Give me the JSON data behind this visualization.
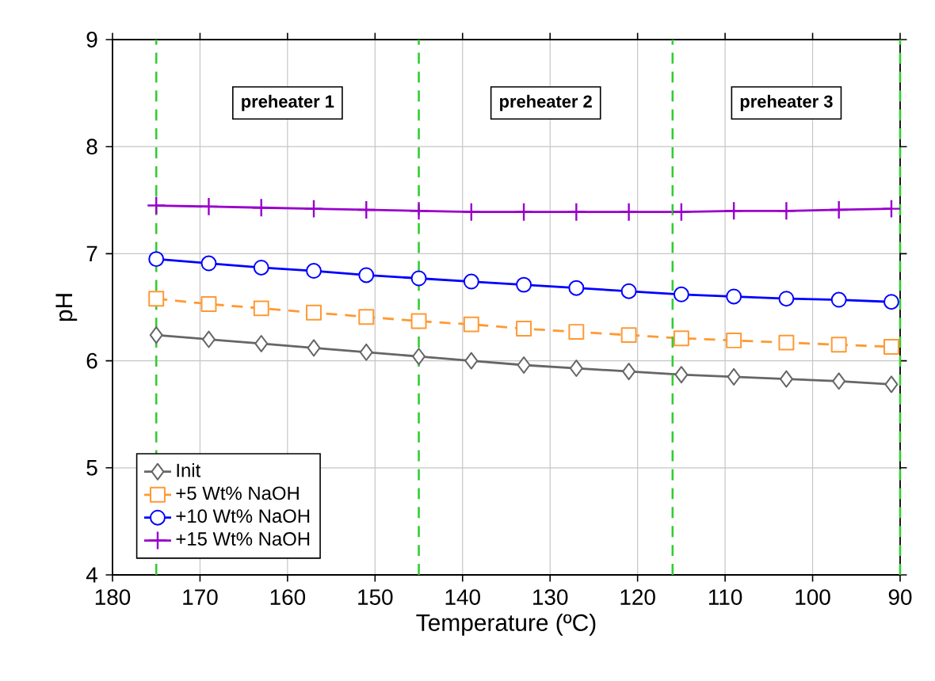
{
  "chart_data": {
    "type": "line",
    "xlabel": "Temperature (ºC)",
    "ylabel": "pH",
    "x": [
      175,
      169,
      163,
      157,
      151,
      145,
      139,
      133,
      127,
      121,
      115,
      109,
      103,
      97,
      91
    ],
    "xlim": [
      180,
      90
    ],
    "xticks": [
      180,
      170,
      160,
      150,
      140,
      130,
      120,
      110,
      100,
      90
    ],
    "ylim": [
      4,
      9
    ],
    "yticks": [
      4,
      5,
      6,
      7,
      8,
      9
    ],
    "grid": true,
    "legend": "bottom left",
    "series": [
      {
        "name": "Init",
        "color": "#666666",
        "marker": "diamond",
        "line_style": "solid",
        "values": [
          6.24,
          6.2,
          6.16,
          6.12,
          6.08,
          6.04,
          6.0,
          5.96,
          5.93,
          5.9,
          5.87,
          5.85,
          5.83,
          5.81,
          5.78
        ]
      },
      {
        "name": "+5 Wt% NaOH",
        "color": "#ff9933",
        "marker": "square",
        "line_style": "dashed",
        "values": [
          6.58,
          6.53,
          6.49,
          6.45,
          6.41,
          6.37,
          6.34,
          6.3,
          6.27,
          6.24,
          6.21,
          6.19,
          6.17,
          6.15,
          6.13
        ]
      },
      {
        "name": "+10 Wt% NaOH",
        "color": "#0000ff",
        "marker": "circle",
        "line_style": "solid",
        "values": [
          6.95,
          6.91,
          6.87,
          6.84,
          6.8,
          6.77,
          6.74,
          6.71,
          6.68,
          6.65,
          6.62,
          6.6,
          6.58,
          6.57,
          6.55
        ]
      },
      {
        "name": "+15 Wt% NaOH",
        "color": "#9900cc",
        "marker": "cross",
        "line_style": "solid",
        "values": [
          7.45,
          7.44,
          7.43,
          7.42,
          7.41,
          7.4,
          7.39,
          7.39,
          7.39,
          7.39,
          7.39,
          7.4,
          7.4,
          7.41,
          7.42
        ]
      }
    ],
    "ref_lines": [
      {
        "axis": "x",
        "value": 175,
        "color": "#33cc33",
        "line_style": "dashed"
      },
      {
        "axis": "x",
        "value": 145,
        "color": "#33cc33",
        "line_style": "dashed"
      },
      {
        "axis": "x",
        "value": 116,
        "color": "#33cc33",
        "line_style": "dashed"
      },
      {
        "axis": "x",
        "value": 90,
        "color": "#33cc33",
        "line_style": "dashed"
      }
    ],
    "annotations": [
      "preheater 1",
      "preheater 2",
      "preheater 3"
    ]
  }
}
